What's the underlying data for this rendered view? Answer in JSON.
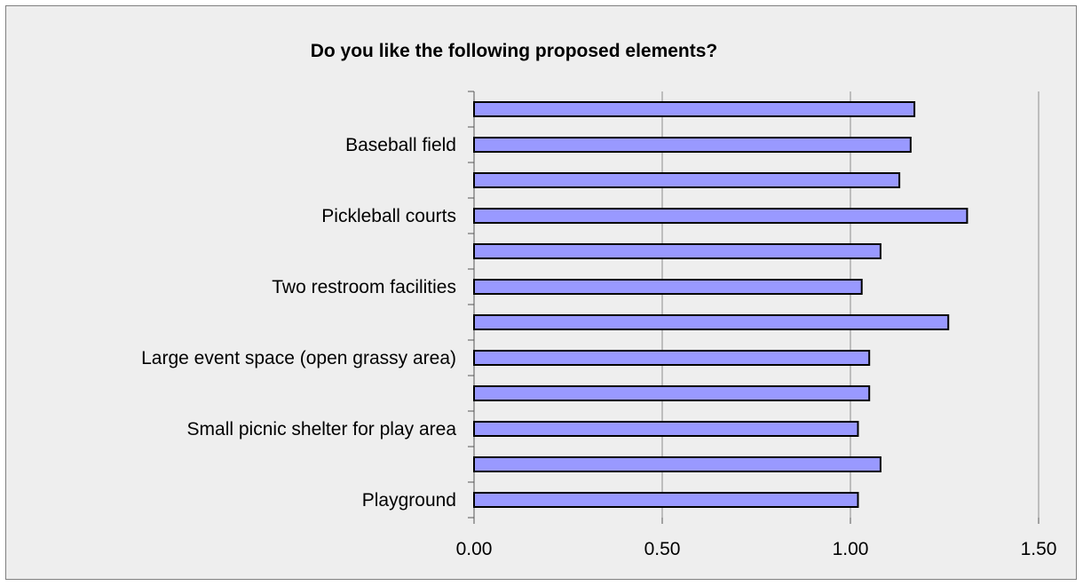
{
  "chart_data": {
    "type": "bar",
    "orientation": "horizontal",
    "title": "Do you like the following proposed elements?",
    "xlabel": "",
    "ylabel": "",
    "xlim": [
      0,
      1.5
    ],
    "xticks": [
      "0.00",
      "0.50",
      "1.00",
      "1.50"
    ],
    "tick_values": [
      0,
      0.5,
      1.0,
      1.5
    ],
    "grid": true,
    "legend": "none",
    "bar_color": "#9999ff",
    "categories": [
      "Playground",
      "",
      "Small picnic shelter for play area",
      "",
      "Large event space (open grassy area)",
      "",
      "Two restroom facilities",
      "",
      "Pickleball courts",
      "",
      "Baseball field",
      ""
    ],
    "values": [
      1.02,
      1.08,
      1.02,
      1.05,
      1.05,
      1.26,
      1.03,
      1.08,
      1.31,
      1.13,
      1.16,
      1.17
    ]
  }
}
